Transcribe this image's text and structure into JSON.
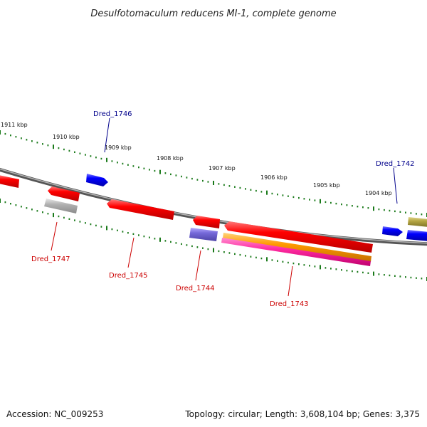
{
  "title": "Desulfotomaculum reducens MI-1, complete genome",
  "accession_text": "Accession: NC_009253",
  "topology_text": "Topology: circular; Length: 3,608,104 bp; Genes: 3,375",
  "scale_labels": [
    "1911 kbp",
    "1910 kbp",
    "1909 kbp",
    "1908 kbp",
    "1907 kbp",
    "1906 kbp",
    "1905 kbp",
    "1904 kbp"
  ],
  "gene_labels": {
    "forward": [
      "Dred_1746",
      "Dred_1742"
    ],
    "reverse": [
      "Dred_1747",
      "Dred_1745",
      "Dred_1744",
      "Dred_1743"
    ]
  },
  "colors": {
    "forward_label": "#00008b",
    "reverse_label": "#cc0000",
    "backbone": "#777777",
    "tick": "#1a7a1a",
    "gene_red": "#ee0000",
    "gene_blue": "#0000ee",
    "gene_gray": "#aaaaaa",
    "gene_slate": "#7b68d8",
    "gene_orange": "#ff9900",
    "gene_pink": "#ff2aa0",
    "gene_olive": "#b5a642"
  }
}
